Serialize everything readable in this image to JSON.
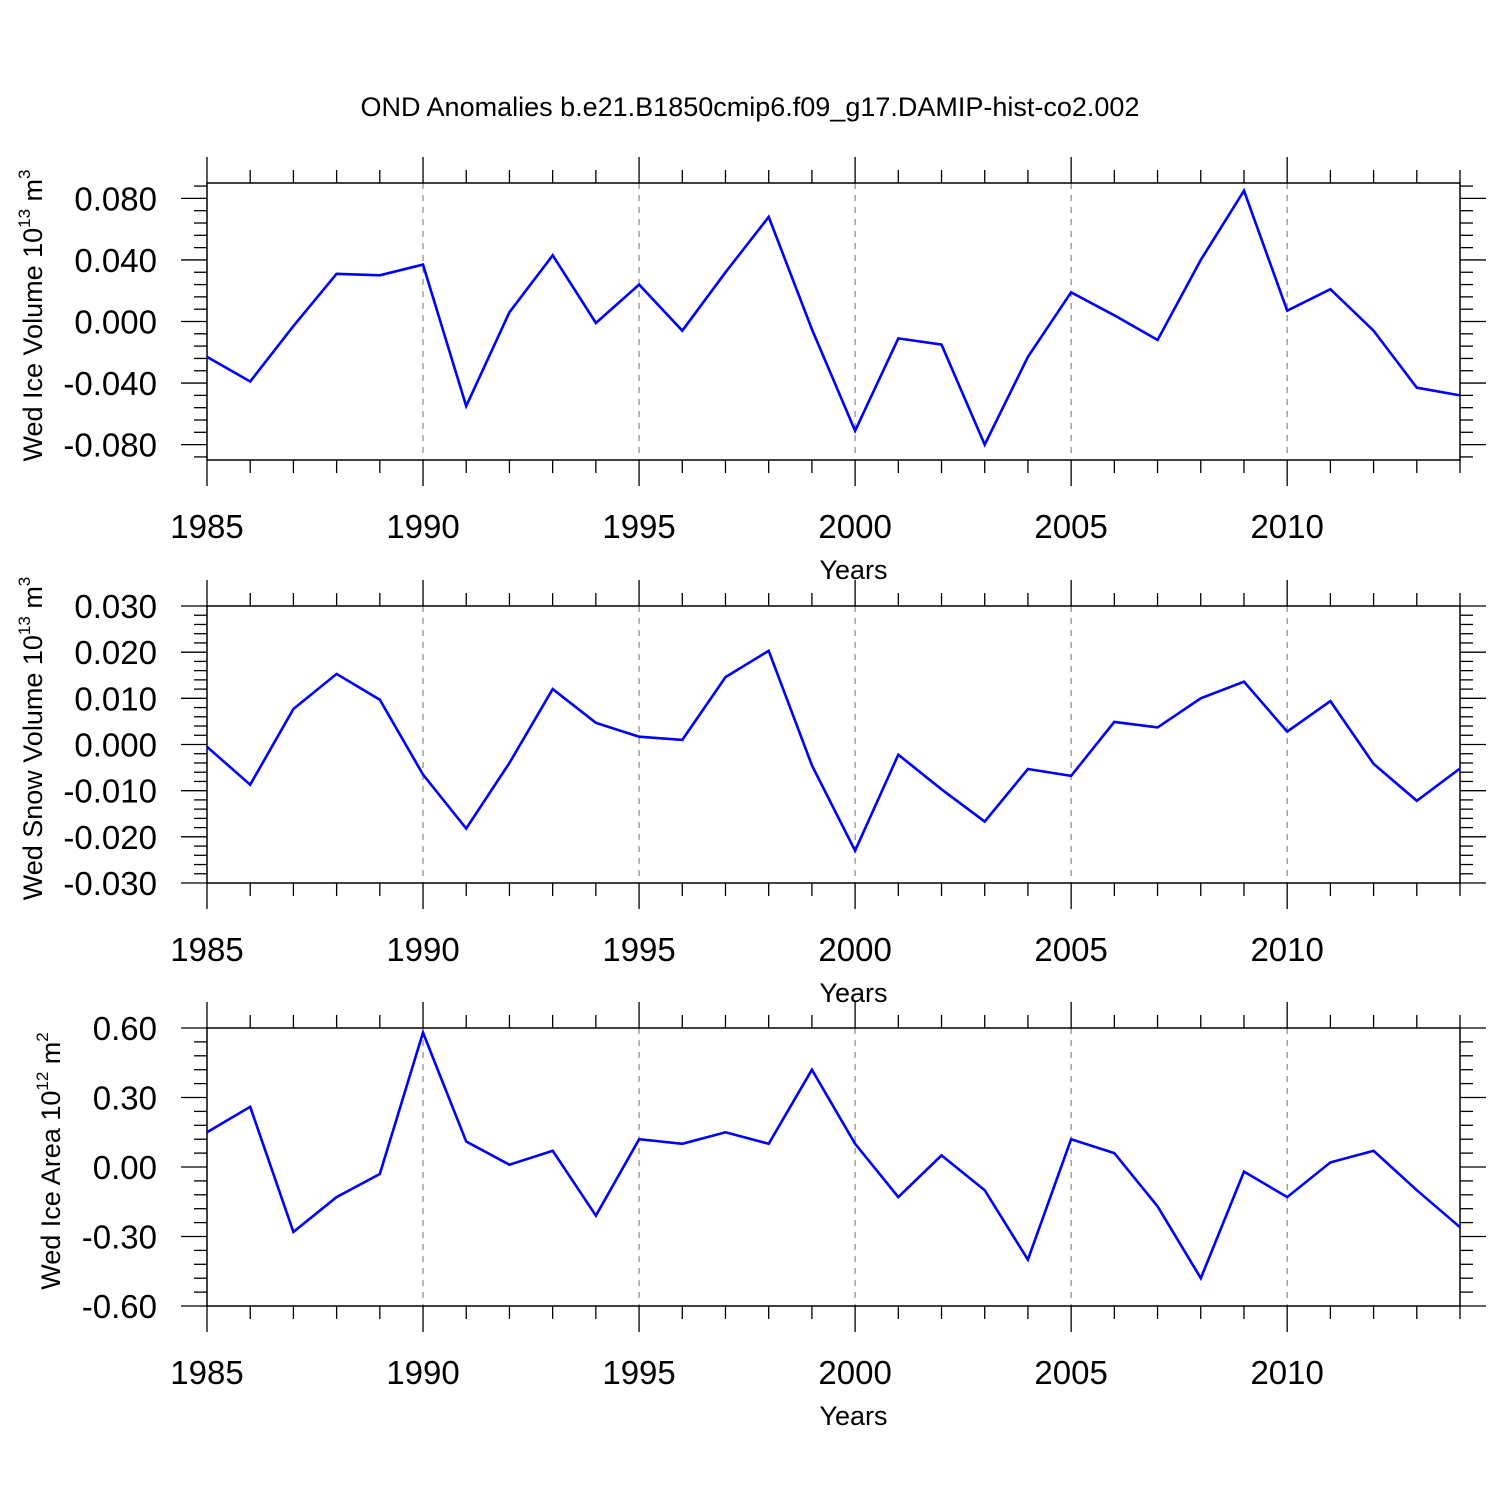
{
  "figure_title": "OND Anomalies b.e21.B1850cmip6.f09_g17.DAMIP-hist-co2.002",
  "line_color": "#0000ff",
  "chart_data": [
    {
      "type": "line",
      "title": "",
      "xlabel": "Years",
      "ylabel": {
        "prefix": "Wed Ice Volume 10",
        "exp": "13",
        "unit": " m",
        "unit_exp": "3"
      },
      "xlim": [
        1985,
        2014
      ],
      "ylim": [
        -0.09,
        0.09
      ],
      "x_ticks": [
        1985,
        1990,
        1995,
        2000,
        2005,
        2010
      ],
      "x_tick_labels": [
        "1985",
        "1990",
        "1995",
        "2000",
        "2005",
        "2010"
      ],
      "y_ticks": [
        -0.08,
        -0.04,
        0.0,
        0.04,
        0.08
      ],
      "y_tick_labels": [
        "-0.080",
        "-0.040",
        "0.000",
        "0.040",
        "0.080"
      ],
      "grid": "vertical-dashed-at-major-x",
      "x": [
        1985,
        1986,
        1987,
        1988,
        1989,
        1990,
        1991,
        1992,
        1993,
        1994,
        1995,
        1996,
        1997,
        1998,
        1999,
        2000,
        2001,
        2002,
        2003,
        2004,
        2005,
        2006,
        2007,
        2008,
        2009,
        2010,
        2011,
        2012,
        2013,
        2014
      ],
      "series": [
        {
          "values": [
            -0.023,
            -0.039,
            -0.003,
            0.031,
            0.03,
            0.037,
            -0.055,
            0.006,
            0.043,
            -0.001,
            0.024,
            -0.006,
            0.032,
            0.068,
            -0.005,
            -0.071,
            -0.011,
            -0.015,
            -0.08,
            -0.023,
            0.019,
            0.004,
            -0.012,
            0.04,
            0.085,
            0.007,
            0.021,
            -0.006,
            -0.043,
            -0.048
          ]
        }
      ]
    },
    {
      "type": "line",
      "title": "",
      "xlabel": "Years",
      "ylabel": {
        "prefix": "Wed Snow Volume 10",
        "exp": "13",
        "unit": " m",
        "unit_exp": "3"
      },
      "xlim": [
        1985,
        2014
      ],
      "ylim": [
        -0.03,
        0.03
      ],
      "x_ticks": [
        1985,
        1990,
        1995,
        2000,
        2005,
        2010
      ],
      "x_tick_labels": [
        "1985",
        "1990",
        "1995",
        "2000",
        "2005",
        "2010"
      ],
      "y_ticks": [
        -0.03,
        -0.02,
        -0.01,
        0.0,
        0.01,
        0.02,
        0.03
      ],
      "y_tick_labels": [
        "-0.030",
        "-0.020",
        "-0.010",
        "0.000",
        "0.010",
        "0.020",
        "0.030"
      ],
      "grid": "vertical-dashed-at-major-x",
      "x": [
        1985,
        1986,
        1987,
        1988,
        1989,
        1990,
        1991,
        1992,
        1993,
        1994,
        1995,
        1996,
        1997,
        1998,
        1999,
        2000,
        2001,
        2002,
        2003,
        2004,
        2005,
        2006,
        2007,
        2008,
        2009,
        2010,
        2011,
        2012,
        2013,
        2014
      ],
      "series": [
        {
          "values": [
            -0.0005,
            -0.0087,
            0.0077,
            0.0153,
            0.0097,
            -0.0065,
            -0.0182,
            -0.004,
            0.012,
            0.0047,
            0.0017,
            0.001,
            0.0146,
            0.0203,
            -0.0045,
            -0.023,
            -0.0022,
            -0.0097,
            -0.0167,
            -0.0053,
            -0.0068,
            0.0049,
            0.0037,
            0.01,
            0.0136,
            0.0028,
            0.0094,
            -0.0042,
            -0.0122,
            -0.0052
          ]
        }
      ]
    },
    {
      "type": "line",
      "title": "",
      "xlabel": "Years",
      "ylabel": {
        "prefix": "Wed Ice Area 10",
        "exp": "12",
        "unit": " m",
        "unit_exp": "2"
      },
      "xlim": [
        1985,
        2014
      ],
      "ylim": [
        -0.6,
        0.6
      ],
      "x_ticks": [
        1985,
        1990,
        1995,
        2000,
        2005,
        2010
      ],
      "x_tick_labels": [
        "1985",
        "1990",
        "1995",
        "2000",
        "2005",
        "2010"
      ],
      "y_ticks": [
        -0.6,
        -0.3,
        0.0,
        0.3,
        0.6
      ],
      "y_tick_labels": [
        "-0.60",
        "-0.30",
        "0.00",
        "0.30",
        "0.60"
      ],
      "grid": "vertical-dashed-at-major-x",
      "x": [
        1985,
        1986,
        1987,
        1988,
        1989,
        1990,
        1991,
        1992,
        1993,
        1994,
        1995,
        1996,
        1997,
        1998,
        1999,
        2000,
        2001,
        2002,
        2003,
        2004,
        2005,
        2006,
        2007,
        2008,
        2009,
        2010,
        2011,
        2012,
        2013,
        2014
      ],
      "series": [
        {
          "values": [
            0.15,
            0.26,
            -0.28,
            -0.13,
            -0.03,
            0.58,
            0.11,
            0.01,
            0.07,
            -0.21,
            0.12,
            0.1,
            0.15,
            0.1,
            0.42,
            0.1,
            -0.13,
            0.05,
            -0.1,
            -0.4,
            0.12,
            0.06,
            -0.17,
            -0.48,
            -0.02,
            -0.13,
            0.02,
            0.07,
            -0.1,
            -0.26
          ]
        }
      ]
    }
  ]
}
